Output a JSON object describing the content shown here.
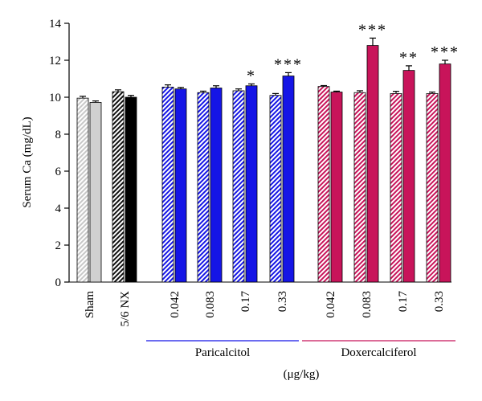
{
  "chart_data": {
    "type": "bar",
    "ylabel": "Serum Ca (mg/dL)",
    "ylim": [
      0,
      14
    ],
    "yticks": [
      0,
      2,
      4,
      6,
      8,
      10,
      12,
      14
    ],
    "grid": false,
    "unit_label": "(μg/kg)",
    "groups": [
      {
        "label": "Sham",
        "colors": [
          "#c8c8c8",
          "#d0d0d0"
        ],
        "bars": [
          {
            "value": 9.95,
            "error": 0.1,
            "pattern": "hatch",
            "sig": ""
          },
          {
            "value": 9.72,
            "error": 0.08,
            "pattern": "solid",
            "sig": ""
          }
        ]
      },
      {
        "label": "5/6 NX",
        "colors": [
          "#111111",
          "#000000"
        ],
        "bars": [
          {
            "value": 10.3,
            "error": 0.1,
            "pattern": "hatch",
            "sig": ""
          },
          {
            "value": 10.0,
            "error": 0.1,
            "pattern": "solid",
            "sig": ""
          }
        ]
      },
      {
        "label": "0.042",
        "colors": [
          "#1515e6",
          "#1515e6"
        ],
        "bars": [
          {
            "value": 10.55,
            "error": 0.12,
            "pattern": "hatch",
            "sig": ""
          },
          {
            "value": 10.45,
            "error": 0.08,
            "pattern": "solid",
            "sig": ""
          }
        ]
      },
      {
        "label": "0.083",
        "colors": [
          "#1515e6",
          "#1515e6"
        ],
        "bars": [
          {
            "value": 10.25,
            "error": 0.08,
            "pattern": "hatch",
            "sig": ""
          },
          {
            "value": 10.5,
            "error": 0.12,
            "pattern": "solid",
            "sig": ""
          }
        ]
      },
      {
        "label": "0.17",
        "colors": [
          "#1515e6",
          "#1515e6"
        ],
        "bars": [
          {
            "value": 10.35,
            "error": 0.1,
            "pattern": "hatch",
            "sig": ""
          },
          {
            "value": 10.62,
            "error": 0.1,
            "pattern": "solid",
            "sig": "*"
          }
        ]
      },
      {
        "label": "0.33",
        "colors": [
          "#1515e6",
          "#1515e6"
        ],
        "bars": [
          {
            "value": 10.1,
            "error": 0.1,
            "pattern": "hatch",
            "sig": ""
          },
          {
            "value": 11.15,
            "error": 0.18,
            "pattern": "solid",
            "sig": "***"
          }
        ]
      },
      {
        "label": "0.042",
        "colors": [
          "#c8145a",
          "#c8145a"
        ],
        "bars": [
          {
            "value": 10.58,
            "error": 0.05,
            "pattern": "hatch",
            "sig": ""
          },
          {
            "value": 10.28,
            "error": 0.05,
            "pattern": "solid",
            "sig": ""
          }
        ]
      },
      {
        "label": "0.083",
        "colors": [
          "#c8145a",
          "#c8145a"
        ],
        "bars": [
          {
            "value": 10.25,
            "error": 0.1,
            "pattern": "hatch",
            "sig": ""
          },
          {
            "value": 12.8,
            "error": 0.4,
            "pattern": "solid",
            "sig": "***"
          }
        ]
      },
      {
        "label": "0.17",
        "colors": [
          "#c8145a",
          "#c8145a"
        ],
        "bars": [
          {
            "value": 10.2,
            "error": 0.12,
            "pattern": "hatch",
            "sig": ""
          },
          {
            "value": 11.45,
            "error": 0.25,
            "pattern": "solid",
            "sig": "**"
          }
        ]
      },
      {
        "label": "0.33",
        "colors": [
          "#c8145a",
          "#c8145a"
        ],
        "bars": [
          {
            "value": 10.2,
            "error": 0.08,
            "pattern": "hatch",
            "sig": ""
          },
          {
            "value": 11.8,
            "error": 0.2,
            "pattern": "solid",
            "sig": "***"
          }
        ]
      }
    ],
    "brackets": [
      {
        "label": "Paricalcitol",
        "color": "#1515e6",
        "from_group": 2,
        "to_group": 5
      },
      {
        "label": "Doxercalciferol",
        "color": "#c8145a",
        "from_group": 6,
        "to_group": 9
      }
    ]
  }
}
